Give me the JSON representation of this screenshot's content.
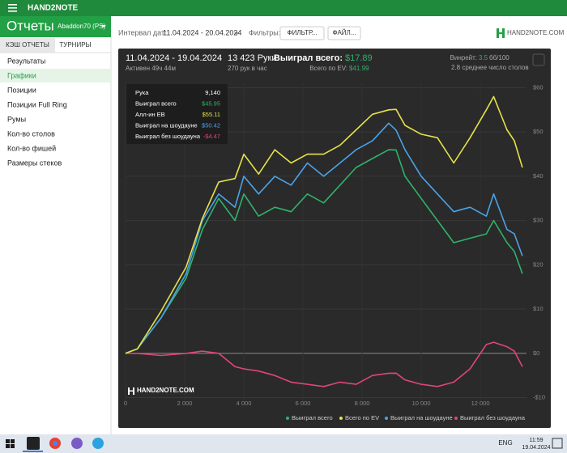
{
  "app": {
    "brand": "HAND2NOTE",
    "title": "Отчеты",
    "account": "Abaddon70 (PS)",
    "tabs": [
      "КЭШ ОТЧЕТЫ",
      "ТУРНИРЫ"
    ],
    "menu": [
      "Результаты",
      "Графики",
      "Позиции",
      "Позиции Full Ring",
      "Румы",
      "Кол-во столов",
      "Кол-во фишей",
      "Размеры стеков"
    ],
    "active_menu": 1
  },
  "toolbar": {
    "interval_label": "Интервал дат:",
    "interval": "11.04.2024 - 20.04.2024",
    "filters_label": "Фильтры:",
    "filter_button": "ФИЛЬТР...",
    "file_button": "ФАЙЛ...",
    "logo": "HAND2NOTE.COM"
  },
  "summary": {
    "period": "11.04.2024 - 19.04.2024",
    "active": "Активен 49ч 44м",
    "hands": "13 423 Руки",
    "hands_per_hour": "270 рук в час",
    "won_label": "Выиграл всего:",
    "won": "$17.89",
    "ev_label": "Всего по EV:",
    "ev": "$41.99",
    "winrate_label": "Винрейт:",
    "winrate": "3.5",
    "winrate_unit": "бб/100",
    "avg_tables": "2.8 среднее число столов"
  },
  "tooltip": {
    "rows": [
      [
        "Рука",
        "9,140"
      ],
      [
        "Выиграл всего",
        "$45.95"
      ],
      [
        "Алл-ин EB",
        "$55.11"
      ],
      [
        "Выиграл на шоудауне",
        "$50.42"
      ],
      [
        "Выиграл без шоудауна",
        "-$4.47"
      ]
    ]
  },
  "chart": {
    "type": "line",
    "watermark": "HAND2NOTE.COM",
    "x": [
      0,
      400,
      1200,
      2050,
      2600,
      3150,
      3700,
      4000,
      4500,
      5050,
      5600,
      6150,
      6700,
      7250,
      7800,
      8350,
      8900,
      9150,
      9450,
      10000,
      10550,
      11100,
      11650,
      12200,
      12450,
      12900,
      13150,
      13420
    ],
    "series": [
      {
        "name": "Выиграл всего",
        "color": "#2fb36b",
        "values": [
          0,
          1,
          8,
          17,
          28,
          35,
          30,
          36,
          31,
          33,
          32,
          36,
          34,
          38,
          42,
          44,
          46,
          45.95,
          40,
          35,
          30,
          25,
          26,
          27,
          30,
          25,
          23,
          18
        ]
      },
      {
        "name": "Всего по EV",
        "color": "#e6e24a",
        "values": [
          0,
          1,
          9.5,
          19.5,
          30.5,
          38.7,
          39.5,
          45,
          40.5,
          46,
          43,
          45,
          45,
          47,
          50.5,
          54,
          55,
          55.11,
          51.5,
          49.5,
          48.7,
          43,
          48.7,
          55,
          58,
          50.5,
          48,
          42
        ]
      },
      {
        "name": "Выиграл на шоудауне",
        "color": "#4aa3e8",
        "values": [
          0,
          1,
          8,
          18,
          30,
          36,
          33,
          40,
          36,
          40,
          38,
          43,
          40,
          43,
          46,
          48,
          52,
          50.42,
          46,
          40,
          36,
          32,
          33,
          31,
          36,
          28,
          27,
          22
        ]
      },
      {
        "name": "Выиграл без шоудауна",
        "color": "#e0457a",
        "values": [
          0,
          0,
          -0.5,
          0,
          0.5,
          0,
          -3,
          -3.5,
          -4,
          -5,
          -6.5,
          -7,
          -7.5,
          -6.5,
          -7,
          -5,
          -4.5,
          -4.47,
          -6,
          -7,
          -7.5,
          -6.5,
          -3.5,
          2,
          2.5,
          1.5,
          0.5,
          -3
        ]
      }
    ],
    "xlim": [
      0,
      13560
    ],
    "ylim": [
      -11,
      61
    ],
    "xticks": [
      0,
      {
        "value": 2000,
        "label": "2 000"
      },
      {
        "value": 4000,
        "label": "4 000"
      },
      {
        "value": 6000,
        "label": "6 000"
      },
      {
        "value": 8000,
        "label": "8 000"
      },
      {
        "value": 10000,
        "label": "10 000"
      },
      {
        "value": 12000,
        "label": "12 000"
      }
    ],
    "yticks": [
      {
        "value": -10,
        "label": "-$10"
      },
      {
        "value": 0,
        "label": "$0"
      },
      {
        "value": 10,
        "label": "$10"
      },
      {
        "value": 20,
        "label": "$20"
      },
      {
        "value": 30,
        "label": "$30"
      },
      {
        "value": 40,
        "label": "$40"
      },
      {
        "value": 50,
        "label": "$50"
      },
      {
        "value": 60,
        "label": "$60"
      }
    ],
    "grid": true
  },
  "taskbar": {
    "lang": "ENG",
    "time": "11:59",
    "date": "19.04.2024"
  }
}
